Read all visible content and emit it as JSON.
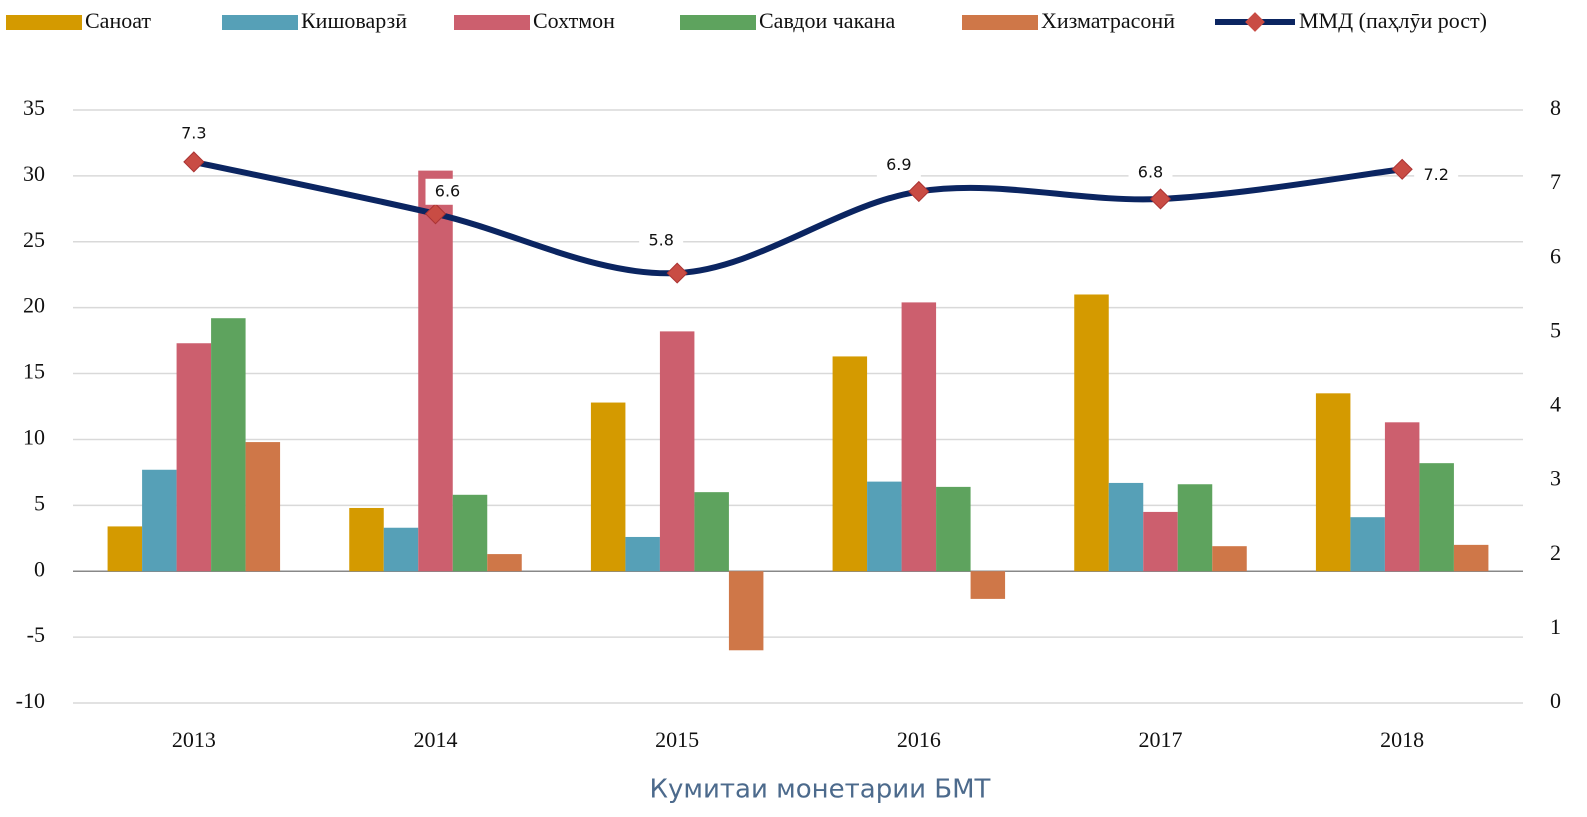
{
  "chart_data": {
    "type": "bar",
    "categories": [
      "2013",
      "2014",
      "2015",
      "2016",
      "2017",
      "2018"
    ],
    "series": [
      {
        "name": "Саноат",
        "color": "#d49a00",
        "values": [
          3.4,
          4.8,
          12.8,
          16.3,
          21.0,
          13.5
        ]
      },
      {
        "name": "Кишоварзӣ",
        "color": "#56a0b7",
        "values": [
          7.7,
          3.3,
          2.6,
          6.8,
          6.7,
          4.1
        ]
      },
      {
        "name": "Сохтмон",
        "color": "#cc5f6e",
        "values": [
          17.3,
          30.4,
          18.2,
          20.4,
          4.5,
          11.3
        ]
      },
      {
        "name": "Савдои чакана",
        "color": "#5ea35e",
        "values": [
          19.2,
          5.8,
          6.0,
          6.4,
          6.6,
          8.2
        ]
      },
      {
        "name": "Хизматрасонӣ",
        "color": "#cf7748",
        "values": [
          9.8,
          1.3,
          -6.0,
          -2.1,
          1.9,
          2.0
        ]
      },
      {
        "name": "ММД (паҳлӯи рост)",
        "type": "line",
        "axis": "y2",
        "color": "#0b2561",
        "marker_color": "#c94c44",
        "values": [
          7.3,
          6.6,
          5.8,
          6.9,
          6.8,
          7.2
        ]
      }
    ],
    "ylim": [
      -10,
      35
    ],
    "yticks": [
      -10,
      -5,
      0,
      5,
      10,
      15,
      20,
      25,
      30,
      35
    ],
    "y2lim": [
      0,
      8
    ],
    "y2ticks": [
      0,
      1,
      2,
      3,
      4,
      5,
      6,
      7,
      8
    ],
    "grid": true,
    "legend": "top",
    "source": "Кумитаи монетарии БМТ"
  }
}
